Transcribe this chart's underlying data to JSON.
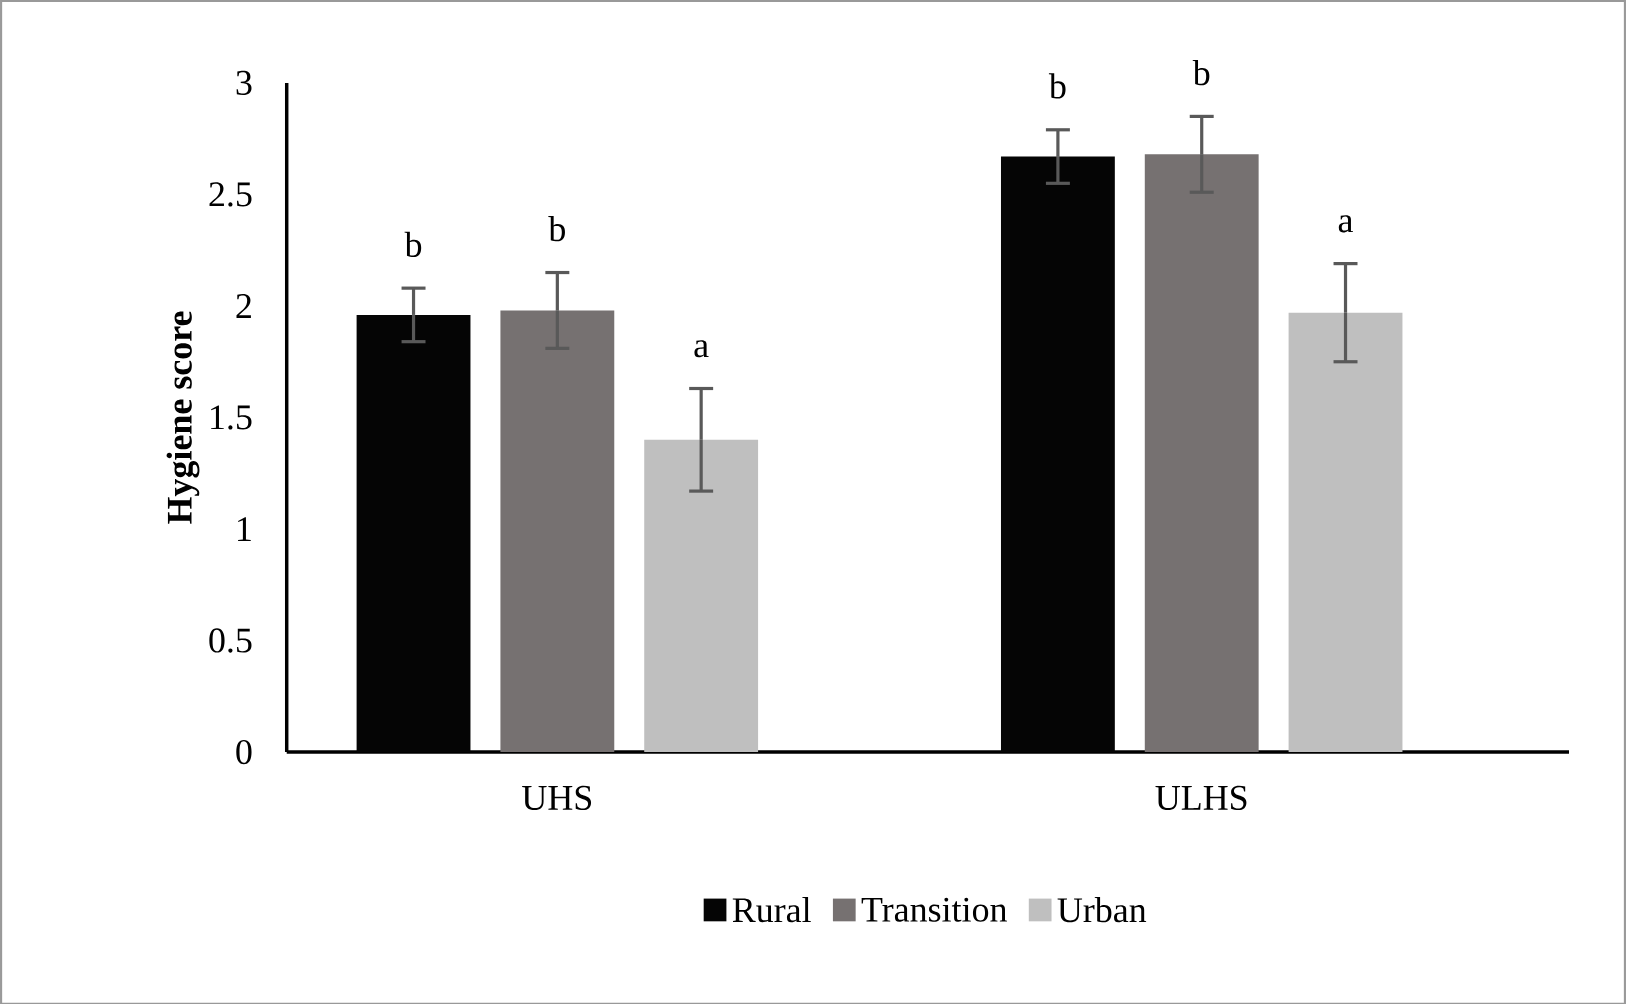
{
  "chart_data": {
    "type": "bar",
    "ylabel": "Hygiene score",
    "categories": [
      "UHS",
      "ULHS"
    ],
    "series": [
      {
        "name": "Rural",
        "color": "#050505",
        "values": [
          1.96,
          2.67
        ],
        "errors": [
          0.12,
          0.12
        ],
        "value_labels": [
          "b",
          "b"
        ]
      },
      {
        "name": "Transition",
        "color": "#767171",
        "values": [
          1.98,
          2.68
        ],
        "errors": [
          0.17,
          0.17
        ],
        "value_labels": [
          "b",
          "b"
        ]
      },
      {
        "name": "Urban",
        "color": "#bfbfbf",
        "values": [
          1.4,
          1.97
        ],
        "errors": [
          0.23,
          0.22
        ],
        "value_labels": [
          "a",
          "a"
        ]
      }
    ],
    "ylim": [
      0,
      3
    ],
    "yticks": [
      0,
      0.5,
      1,
      1.5,
      2,
      2.5,
      3
    ],
    "legend": "bottom"
  }
}
